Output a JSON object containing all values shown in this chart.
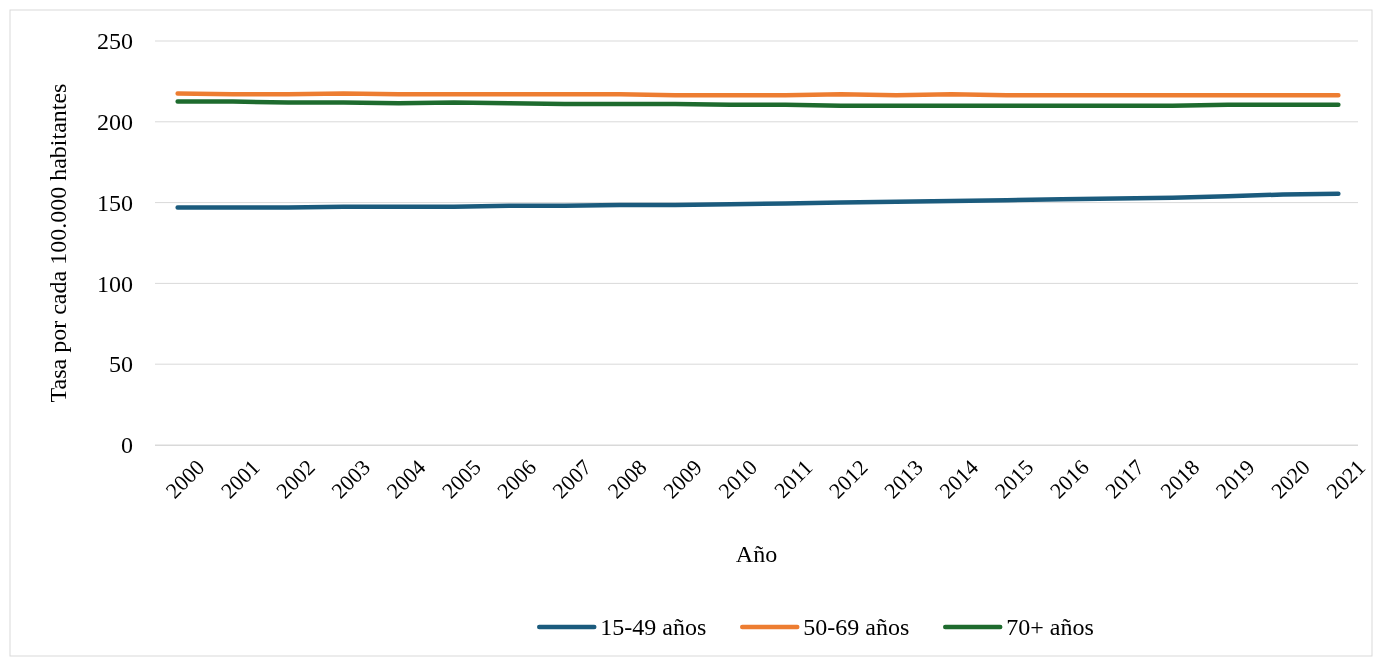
{
  "chart_data": {
    "type": "line",
    "xlabel": "Año",
    "ylabel": "Tasa por cada 100.000 habitantes",
    "categories": [
      "2000",
      "2001",
      "2002",
      "2003",
      "2004",
      "2005",
      "2006",
      "2007",
      "2008",
      "2009",
      "2010",
      "2011",
      "2012",
      "2013",
      "2014",
      "2015",
      "2016",
      "2017",
      "2018",
      "2019",
      "2020",
      "2021"
    ],
    "series": [
      {
        "name": "15-49 años",
        "color": "#1b5b7d",
        "values": [
          147,
          147,
          147,
          147.5,
          147.5,
          147.5,
          148,
          148,
          148.5,
          148.5,
          149,
          149.5,
          150,
          150.5,
          151,
          151.5,
          152,
          152.5,
          153,
          154,
          155,
          155.5
        ]
      },
      {
        "name": "50-69 años",
        "color": "#ed7d31",
        "values": [
          217.5,
          217,
          217,
          217.5,
          217,
          217,
          217,
          217,
          217,
          216.5,
          216.5,
          216.5,
          217,
          216.5,
          217,
          216.5,
          216.5,
          216.5,
          216.5,
          216.5,
          216.5,
          216.5
        ]
      },
      {
        "name": "70+ años",
        "color": "#1e6b2e",
        "values": [
          212.5,
          212.5,
          212,
          212,
          211.5,
          212,
          211.5,
          211,
          211,
          211,
          210.5,
          210.5,
          210,
          210,
          210,
          210,
          210,
          210,
          210,
          210.5,
          210.5,
          210.5
        ]
      }
    ],
    "ylim": [
      0,
      250
    ],
    "yticks": [
      0,
      50,
      100,
      150,
      200,
      250
    ],
    "grid": "y",
    "legend": "bottom",
    "marker": "none",
    "line_style": "solid"
  }
}
